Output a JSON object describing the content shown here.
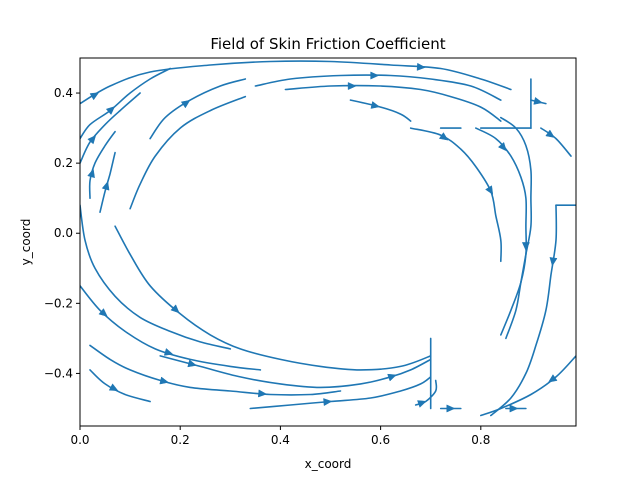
{
  "chart_data": {
    "type": "streamplot",
    "title": "Field of Skin Friction Coefficient",
    "xlabel": "x_coord",
    "ylabel": "y_coord",
    "xlim": [
      0.0,
      0.99
    ],
    "ylim": [
      -0.55,
      0.5
    ],
    "xticks": [
      0.0,
      0.2,
      0.4,
      0.6,
      0.8
    ],
    "yticks": [
      -0.4,
      -0.2,
      0.0,
      0.2,
      0.4
    ],
    "xtick_labels": [
      "0.0",
      "0.2",
      "0.4",
      "0.6",
      "0.8"
    ],
    "ytick_labels": [
      "−0.4",
      "−0.2",
      "0.0",
      "0.2",
      "0.4"
    ],
    "grid": false,
    "line_color": "#1f77b4",
    "streamlines": [
      {
        "name": "outer-top",
        "points": [
          [
            0.0,
            0.37
          ],
          [
            0.06,
            0.42
          ],
          [
            0.14,
            0.46
          ],
          [
            0.26,
            0.48
          ],
          [
            0.38,
            0.49
          ],
          [
            0.5,
            0.49
          ],
          [
            0.62,
            0.48
          ],
          [
            0.72,
            0.47
          ],
          [
            0.8,
            0.44
          ],
          [
            0.86,
            0.41
          ]
        ],
        "arrows": [
          0.04,
          0.79
        ]
      },
      {
        "name": "top-2",
        "points": [
          [
            0.0,
            0.27
          ],
          [
            0.02,
            0.31
          ],
          [
            0.06,
            0.35
          ],
          [
            0.1,
            0.4
          ],
          [
            0.14,
            0.44
          ],
          [
            0.18,
            0.47
          ]
        ],
        "arrows": [
          0.38
        ]
      },
      {
        "name": "top-3",
        "points": [
          [
            0.35,
            0.42
          ],
          [
            0.42,
            0.44
          ],
          [
            0.52,
            0.45
          ],
          [
            0.62,
            0.45
          ],
          [
            0.7,
            0.44
          ],
          [
            0.78,
            0.42
          ],
          [
            0.84,
            0.38
          ]
        ],
        "arrows": [
          0.48
        ]
      },
      {
        "name": "top-4",
        "points": [
          [
            0.41,
            0.41
          ],
          [
            0.5,
            0.42
          ],
          [
            0.6,
            0.42
          ],
          [
            0.68,
            0.41
          ],
          [
            0.74,
            0.39
          ],
          [
            0.8,
            0.36
          ],
          [
            0.84,
            0.32
          ]
        ],
        "arrows": [
          0.3
        ]
      },
      {
        "name": "top-5",
        "points": [
          [
            0.14,
            0.27
          ],
          [
            0.17,
            0.33
          ],
          [
            0.22,
            0.38
          ],
          [
            0.28,
            0.42
          ],
          [
            0.33,
            0.44
          ]
        ],
        "arrows": [
          0.45
        ]
      },
      {
        "name": "top-6",
        "points": [
          [
            0.1,
            0.07
          ],
          [
            0.12,
            0.14
          ],
          [
            0.15,
            0.22
          ],
          [
            0.2,
            0.3
          ],
          [
            0.26,
            0.35
          ],
          [
            0.33,
            0.39
          ]
        ],
        "arrows": []
      },
      {
        "name": "top-7",
        "points": [
          [
            0.54,
            0.38
          ],
          [
            0.6,
            0.36
          ],
          [
            0.64,
            0.34
          ],
          [
            0.66,
            0.32
          ]
        ],
        "arrows": [
          0.4
        ]
      },
      {
        "name": "left-arc-1",
        "points": [
          [
            0.0,
            0.2
          ],
          [
            0.02,
            0.26
          ],
          [
            0.05,
            0.31
          ],
          [
            0.08,
            0.35
          ],
          [
            0.12,
            0.4
          ]
        ],
        "arrows": [
          0.3
        ]
      },
      {
        "name": "left-arc-2",
        "points": [
          [
            0.02,
            0.1
          ],
          [
            0.02,
            0.15
          ],
          [
            0.03,
            0.2
          ],
          [
            0.05,
            0.25
          ],
          [
            0.07,
            0.29
          ]
        ],
        "arrows": [
          0.35
        ]
      },
      {
        "name": "left-arc-3",
        "points": [
          [
            0.04,
            0.06
          ],
          [
            0.05,
            0.12
          ],
          [
            0.06,
            0.17
          ],
          [
            0.07,
            0.23
          ]
        ],
        "arrows": [
          0.45
        ]
      },
      {
        "name": "inner-mid",
        "points": [
          [
            0.66,
            0.3
          ],
          [
            0.72,
            0.28
          ],
          [
            0.76,
            0.24
          ],
          [
            0.79,
            0.19
          ],
          [
            0.82,
            0.12
          ],
          [
            0.83,
            0.05
          ],
          [
            0.84,
            -0.02
          ],
          [
            0.84,
            -0.08
          ]
        ],
        "arrows": [
          0.2,
          0.6
        ]
      },
      {
        "name": "right-1",
        "points": [
          [
            0.79,
            0.3
          ],
          [
            0.83,
            0.27
          ],
          [
            0.86,
            0.22
          ],
          [
            0.88,
            0.16
          ],
          [
            0.89,
            0.1
          ],
          [
            0.89,
            0.02
          ],
          [
            0.89,
            -0.06
          ],
          [
            0.88,
            -0.14
          ],
          [
            0.86,
            -0.22
          ],
          [
            0.84,
            -0.29
          ]
        ],
        "arrows": [
          0.15,
          0.6
        ]
      },
      {
        "name": "right-2",
        "points": [
          [
            0.84,
            0.33
          ],
          [
            0.87,
            0.3
          ],
          [
            0.89,
            0.25
          ],
          [
            0.9,
            0.18
          ],
          [
            0.9,
            0.1
          ],
          [
            0.9,
            0.02
          ],
          [
            0.89,
            -0.06
          ],
          [
            0.88,
            -0.14
          ],
          [
            0.87,
            -0.22
          ],
          [
            0.85,
            -0.3
          ]
        ],
        "arrows": []
      },
      {
        "name": "right-3",
        "points": [
          [
            0.92,
            0.3
          ],
          [
            0.95,
            0.27
          ],
          [
            0.98,
            0.22
          ]
        ],
        "arrows": [
          0.3
        ]
      },
      {
        "name": "right-4",
        "points": [
          [
            0.9,
            0.38
          ],
          [
            0.93,
            0.37
          ]
        ],
        "arrows": [
          0.5
        ]
      },
      {
        "name": "right-5",
        "points": [
          [
            0.95,
            0.08
          ],
          [
            0.95,
            -0.02
          ],
          [
            0.94,
            -0.12
          ],
          [
            0.93,
            -0.22
          ],
          [
            0.91,
            -0.32
          ],
          [
            0.89,
            -0.4
          ],
          [
            0.86,
            -0.47
          ],
          [
            0.82,
            -0.52
          ]
        ],
        "arrows": [
          0.25
        ]
      },
      {
        "name": "right-6",
        "points": [
          [
            0.95,
            0.08
          ],
          [
            0.99,
            0.08
          ]
        ],
        "arrows": []
      },
      {
        "name": "right-7",
        "points": [
          [
            0.99,
            -0.35
          ],
          [
            0.95,
            -0.41
          ],
          [
            0.9,
            -0.46
          ],
          [
            0.84,
            -0.5
          ],
          [
            0.8,
            -0.52
          ]
        ],
        "arrows": [
          0.3
        ]
      },
      {
        "name": "bottom-1",
        "points": [
          [
            0.0,
            -0.15
          ],
          [
            0.04,
            -0.22
          ],
          [
            0.09,
            -0.28
          ],
          [
            0.15,
            -0.33
          ],
          [
            0.22,
            -0.36
          ],
          [
            0.3,
            -0.38
          ],
          [
            0.36,
            -0.39
          ]
        ],
        "arrows": [
          0.18,
          0.55
        ]
      },
      {
        "name": "bottom-2",
        "points": [
          [
            0.0,
            0.08
          ],
          [
            0.01,
            -0.02
          ],
          [
            0.03,
            -0.1
          ],
          [
            0.07,
            -0.18
          ],
          [
            0.12,
            -0.24
          ],
          [
            0.18,
            -0.28
          ],
          [
            0.24,
            -0.31
          ],
          [
            0.3,
            -0.33
          ]
        ],
        "arrows": []
      },
      {
        "name": "bottom-3",
        "points": [
          [
            0.07,
            0.02
          ],
          [
            0.1,
            -0.06
          ],
          [
            0.14,
            -0.15
          ],
          [
            0.2,
            -0.23
          ],
          [
            0.26,
            -0.29
          ],
          [
            0.32,
            -0.33
          ],
          [
            0.4,
            -0.36
          ],
          [
            0.48,
            -0.38
          ],
          [
            0.56,
            -0.39
          ],
          [
            0.64,
            -0.38
          ],
          [
            0.7,
            -0.35
          ]
        ],
        "arrows": [
          0.28
        ]
      },
      {
        "name": "bottom-4",
        "points": [
          [
            0.16,
            -0.35
          ],
          [
            0.24,
            -0.38
          ],
          [
            0.32,
            -0.41
          ],
          [
            0.4,
            -0.43
          ],
          [
            0.48,
            -0.44
          ],
          [
            0.56,
            -0.43
          ],
          [
            0.62,
            -0.41
          ],
          [
            0.66,
            -0.39
          ],
          [
            0.7,
            -0.36
          ]
        ],
        "arrows": [
          0.12,
          0.85
        ]
      },
      {
        "name": "bottom-5",
        "points": [
          [
            0.02,
            -0.32
          ],
          [
            0.06,
            -0.36
          ],
          [
            0.1,
            -0.39
          ],
          [
            0.16,
            -0.42
          ],
          [
            0.22,
            -0.44
          ],
          [
            0.3,
            -0.45
          ],
          [
            0.38,
            -0.46
          ],
          [
            0.46,
            -0.46
          ],
          [
            0.52,
            -0.45
          ]
        ],
        "arrows": [
          0.32,
          0.7
        ]
      },
      {
        "name": "bottom-6",
        "points": [
          [
            0.02,
            -0.39
          ],
          [
            0.05,
            -0.43
          ],
          [
            0.09,
            -0.46
          ],
          [
            0.14,
            -0.48
          ]
        ],
        "arrows": [
          0.45
        ]
      },
      {
        "name": "bottom-7",
        "points": [
          [
            0.34,
            -0.5
          ],
          [
            0.42,
            -0.49
          ],
          [
            0.5,
            -0.48
          ],
          [
            0.58,
            -0.47
          ],
          [
            0.64,
            -0.45
          ],
          [
            0.68,
            -0.43
          ],
          [
            0.7,
            -0.41
          ]
        ],
        "arrows": [
          0.42
        ]
      },
      {
        "name": "bottom-8",
        "points": [
          [
            0.67,
            -0.49
          ],
          [
            0.69,
            -0.48
          ],
          [
            0.71,
            -0.45
          ],
          [
            0.71,
            -0.42
          ]
        ],
        "arrows": [
          0.2
        ]
      },
      {
        "name": "bottom-9",
        "points": [
          [
            0.72,
            -0.5
          ],
          [
            0.76,
            -0.5
          ]
        ],
        "arrows": [
          0.5
        ]
      },
      {
        "name": "bottom-10",
        "points": [
          [
            0.85,
            -0.5
          ],
          [
            0.89,
            -0.5
          ]
        ],
        "arrows": [
          0.4
        ]
      },
      {
        "name": "vertical-1",
        "points": [
          [
            0.7,
            -0.3
          ],
          [
            0.7,
            -0.5
          ]
        ],
        "arrows": []
      },
      {
        "name": "vertical-2",
        "points": [
          [
            0.9,
            0.44
          ],
          [
            0.9,
            0.3
          ]
        ],
        "arrows": []
      },
      {
        "name": "bracket-1",
        "points": [
          [
            0.72,
            0.3
          ],
          [
            0.76,
            0.3
          ]
        ],
        "arrows": []
      },
      {
        "name": "bracket-2",
        "points": [
          [
            0.8,
            0.3
          ],
          [
            0.9,
            0.3
          ]
        ],
        "arrows": []
      }
    ]
  }
}
